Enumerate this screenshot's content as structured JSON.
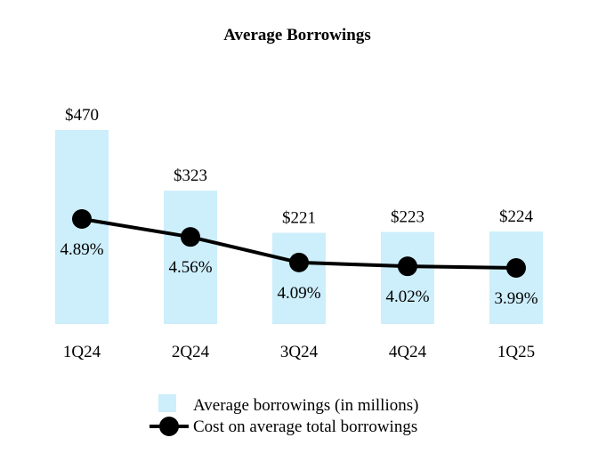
{
  "chart_data": {
    "type": "bar+line",
    "title": "Average Borrowings",
    "categories": [
      "1Q24",
      "2Q24",
      "3Q24",
      "4Q24",
      "1Q25"
    ],
    "series": [
      {
        "name": "Average borrowings (in millions)",
        "kind": "bar",
        "values": [
          470,
          323,
          221,
          223,
          224
        ],
        "labels": [
          "$470",
          "$323",
          "$221",
          "$223",
          "$224"
        ],
        "color": "#cdeefb"
      },
      {
        "name": "Cost on average total borrowings",
        "kind": "line",
        "values": [
          4.89,
          4.56,
          4.09,
          4.02,
          3.99
        ],
        "labels": [
          "4.89%",
          "4.56%",
          "4.09%",
          "4.02%",
          "3.99%"
        ],
        "color": "#000000"
      }
    ],
    "legend": {
      "position": "bottom-center",
      "entries": [
        "Average borrowings (in millions)",
        "Cost on average total borrowings"
      ]
    },
    "xlabel": "",
    "ylabel": "",
    "grid": false
  }
}
